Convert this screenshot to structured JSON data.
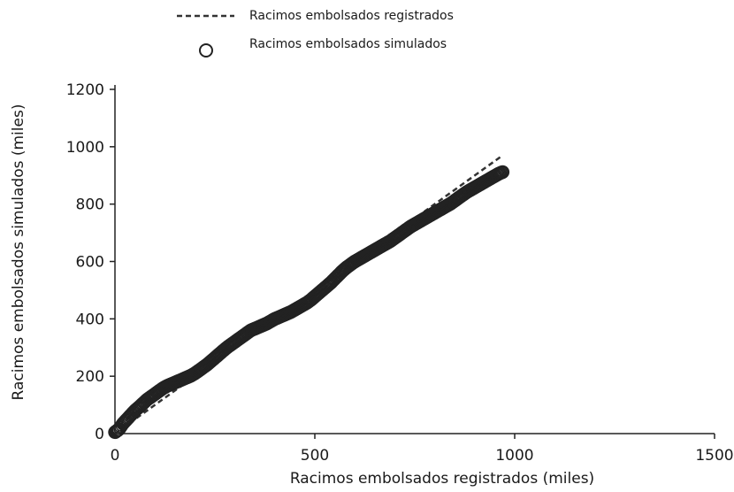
{
  "chart_data": {
    "type": "scatter",
    "xlabel": "Racimos embolsados registrados (miles)",
    "ylabel": "Racimos embolsados simulados (miles)",
    "xlim": [
      0,
      1500
    ],
    "ylim": [
      0,
      1200
    ],
    "x_ticks": [
      "0",
      "500",
      "1000",
      "1500"
    ],
    "y_ticks": [
      "0",
      "200",
      "400",
      "600",
      "800",
      "1000",
      "1200"
    ],
    "grid": false,
    "legend_position": "top-center",
    "series": [
      {
        "name": "Racimos embolsados registrados",
        "style": "dashed-line",
        "color": "#333333",
        "x": [
          0,
          970
        ],
        "y": [
          0,
          970
        ]
      },
      {
        "name": "Racimos embolsados simulados",
        "style": "open-circle",
        "color": "#222222",
        "x": [
          0,
          5,
          10,
          20,
          30,
          40,
          50,
          60,
          70,
          80,
          90,
          100,
          110,
          120,
          130,
          140,
          150,
          160,
          170,
          180,
          190,
          200,
          210,
          220,
          230,
          240,
          250,
          260,
          270,
          280,
          290,
          300,
          310,
          320,
          330,
          340,
          350,
          360,
          370,
          380,
          390,
          400,
          410,
          420,
          430,
          440,
          450,
          460,
          470,
          480,
          490,
          500,
          510,
          520,
          530,
          540,
          550,
          560,
          570,
          580,
          590,
          600,
          610,
          620,
          630,
          640,
          650,
          660,
          670,
          680,
          690,
          700,
          710,
          720,
          730,
          740,
          750,
          760,
          770,
          780,
          790,
          800,
          810,
          820,
          830,
          840,
          850,
          860,
          870,
          880,
          890,
          900,
          910,
          920,
          930,
          940,
          950,
          960,
          970
        ],
        "y": [
          5,
          10,
          15,
          35,
          50,
          65,
          80,
          92,
          105,
          118,
          128,
          138,
          148,
          158,
          166,
          172,
          178,
          184,
          190,
          196,
          202,
          210,
          220,
          230,
          240,
          252,
          264,
          276,
          288,
          300,
          310,
          320,
          330,
          340,
          350,
          360,
          366,
          372,
          378,
          384,
          392,
          400,
          406,
          412,
          418,
          424,
          432,
          440,
          448,
          456,
          466,
          478,
          490,
          502,
          514,
          526,
          540,
          554,
          568,
          580,
          590,
          600,
          608,
          616,
          624,
          632,
          640,
          648,
          656,
          664,
          672,
          682,
          692,
          702,
          712,
          722,
          730,
          738,
          746,
          754,
          762,
          770,
          778,
          786,
          794,
          802,
          812,
          822,
          832,
          842,
          850,
          858,
          866,
          874,
          882,
          890,
          898,
          906,
          912
        ]
      }
    ]
  }
}
